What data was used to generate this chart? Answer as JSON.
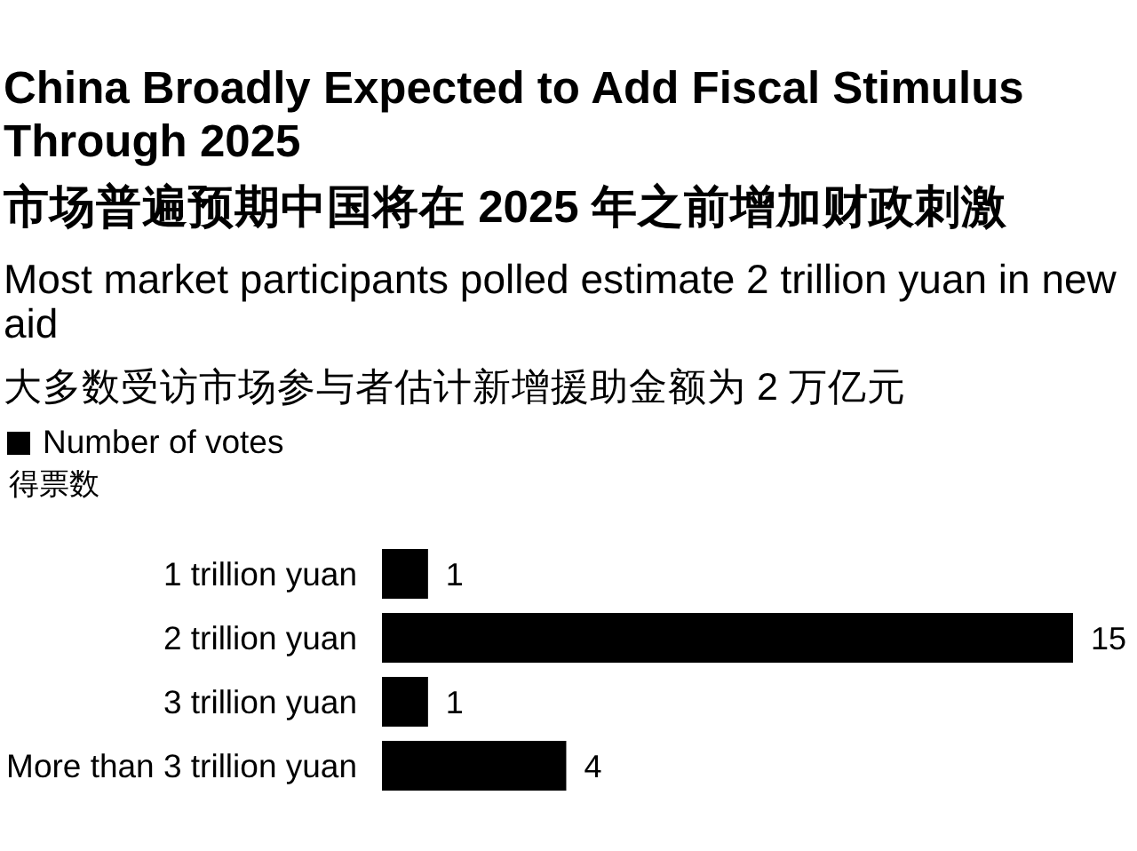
{
  "chart_data": {
    "type": "bar",
    "orientation": "horizontal",
    "title": "China Broadly Expected to Add Fiscal Stimulus Through 2025",
    "subtitle": "Most market participants polled estimate 2 trillion yuan in new aid",
    "annotations": [
      "市场普遍预期中国将在 2025 年之前增加财政刺激",
      "大多数受访市场参与者估计新增援助金额为 2 万亿元",
      "得票数"
    ],
    "categories": [
      "1 trillion yuan",
      "2 trillion yuan",
      "3 trillion yuan",
      "More than 3 trillion yuan"
    ],
    "series": [
      {
        "name": "Number of votes",
        "color": "#000000",
        "values": [
          1,
          15,
          1,
          4
        ]
      }
    ],
    "data_labels": true,
    "legend": "top left",
    "tick_labels": "y"
  }
}
